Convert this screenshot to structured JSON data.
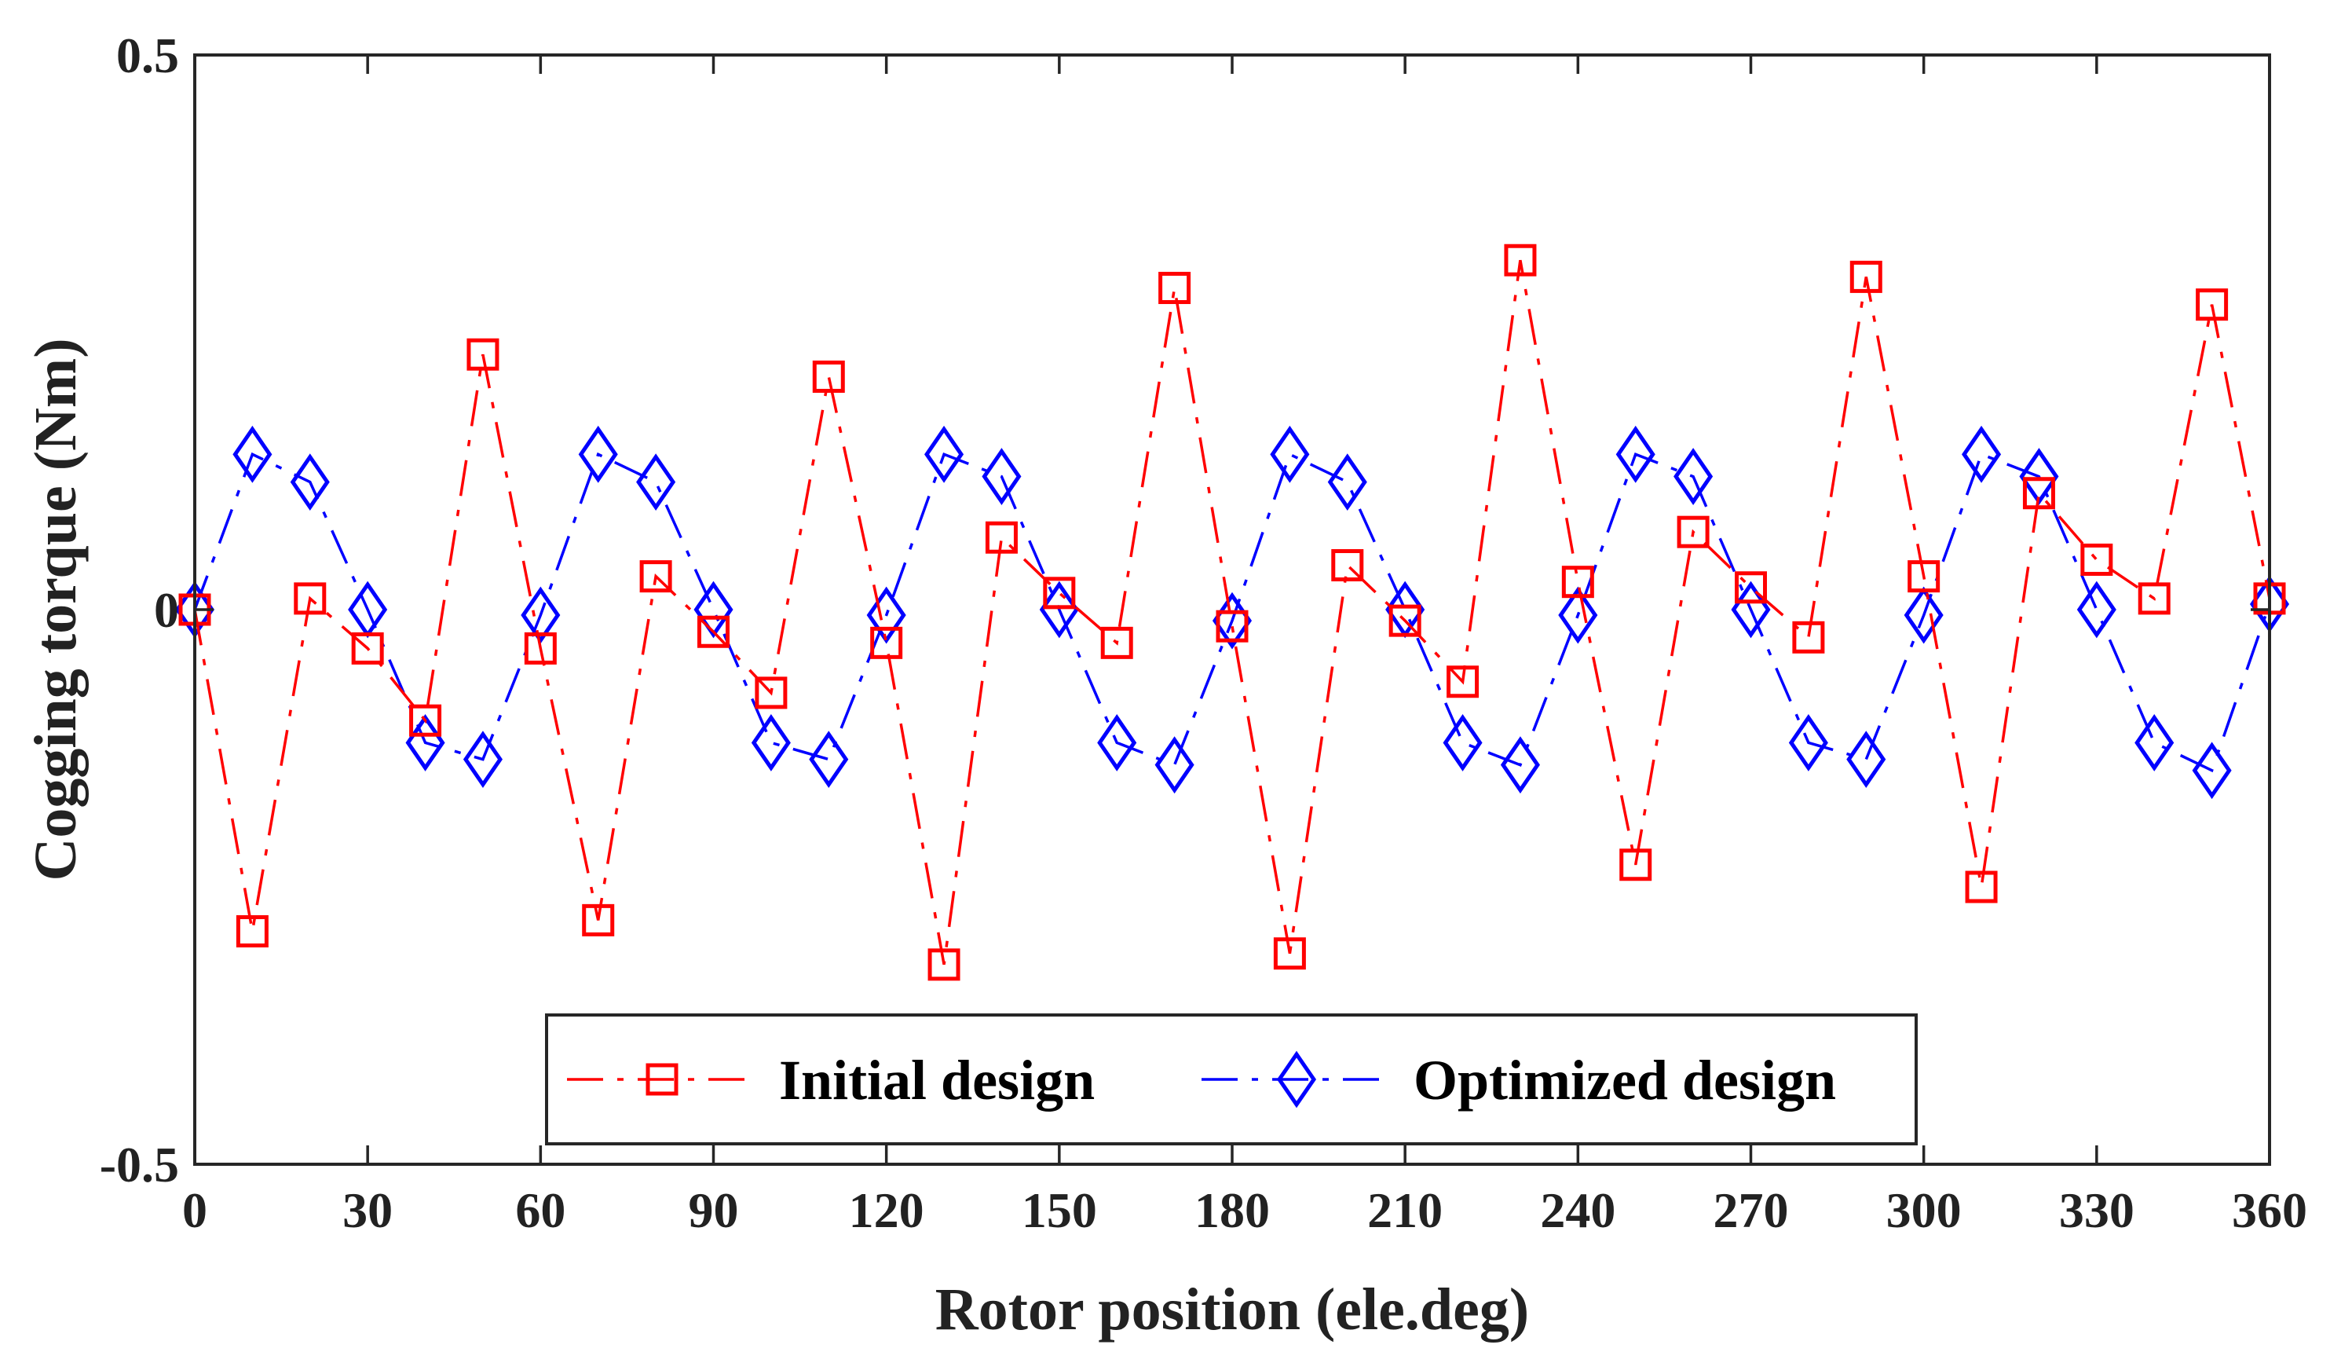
{
  "chart_data": {
    "type": "line",
    "title": "",
    "xlabel": "Rotor position (ele.deg)",
    "ylabel": "Cogging torque (Nm)",
    "xlim": [
      0,
      360
    ],
    "ylim": [
      -0.5,
      0.5
    ],
    "xticks": [
      0,
      30,
      60,
      90,
      120,
      150,
      180,
      210,
      240,
      270,
      300,
      330,
      360
    ],
    "yticks": [
      -0.5,
      0,
      0.5
    ],
    "ytick_labels": [
      "-0.5",
      "0",
      "0.5"
    ],
    "grid": false,
    "legend_position": "bottom-center",
    "x": [
      0,
      10,
      20,
      30,
      40,
      50,
      60,
      70,
      80,
      90,
      100,
      110,
      120,
      130,
      140,
      150,
      160,
      170,
      180,
      190,
      200,
      210,
      220,
      230,
      240,
      250,
      260,
      270,
      280,
      290,
      300,
      310,
      320,
      330,
      340,
      350,
      360
    ],
    "series": [
      {
        "name": "Initial design",
        "color": "#ff0000",
        "marker": "square",
        "line_style": "dash-dot",
        "values": [
          0.0,
          -0.29,
          0.01,
          -0.035,
          -0.1,
          0.23,
          -0.035,
          -0.28,
          0.03,
          -0.02,
          -0.075,
          0.21,
          -0.03,
          -0.32,
          0.065,
          0.015,
          -0.03,
          0.29,
          -0.015,
          -0.31,
          0.04,
          -0.01,
          -0.065,
          0.315,
          0.025,
          -0.23,
          0.07,
          0.02,
          -0.025,
          0.3,
          0.03,
          -0.25,
          0.105,
          0.045,
          0.01,
          0.275,
          0.01
        ]
      },
      {
        "name": "Optimized design",
        "color": "#0000ff",
        "marker": "diamond",
        "line_style": "dash-dot",
        "values": [
          0.0,
          0.14,
          0.115,
          0.0,
          -0.12,
          -0.135,
          -0.005,
          0.14,
          0.115,
          0.0,
          -0.12,
          -0.135,
          -0.005,
          0.14,
          0.12,
          0.0,
          -0.12,
          -0.14,
          -0.01,
          0.14,
          0.115,
          0.0,
          -0.12,
          -0.14,
          -0.005,
          0.14,
          0.12,
          0.0,
          -0.12,
          -0.135,
          -0.005,
          0.14,
          0.12,
          0.0,
          -0.12,
          -0.145,
          0.005
        ]
      }
    ]
  }
}
